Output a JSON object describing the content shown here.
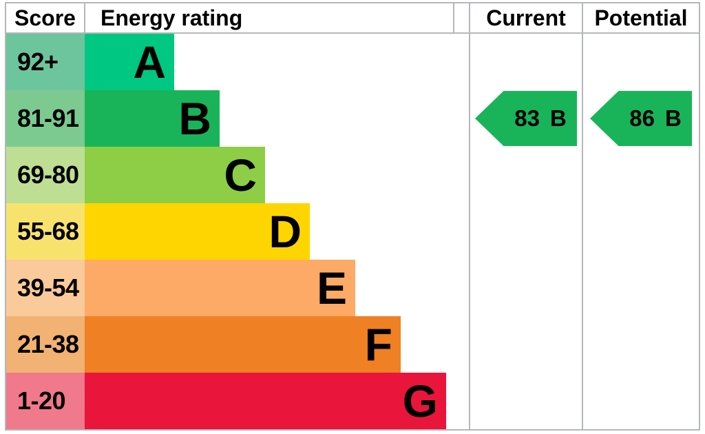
{
  "header": {
    "score": "Score",
    "energy_rating": "Energy rating",
    "current": "Current",
    "potential": "Potential"
  },
  "bands": [
    {
      "letter": "A",
      "score_range": "92+",
      "bar_color": "#00c781",
      "score_bg": "#6cc59d"
    },
    {
      "letter": "B",
      "score_range": "81-91",
      "bar_color": "#19b459",
      "score_bg": "#7cca8f"
    },
    {
      "letter": "C",
      "score_range": "69-80",
      "bar_color": "#8dce46",
      "score_bg": "#bede93"
    },
    {
      "letter": "D",
      "score_range": "55-68",
      "bar_color": "#ffd500",
      "score_bg": "#f8e26e"
    },
    {
      "letter": "E",
      "score_range": "39-54",
      "bar_color": "#fcaa65",
      "score_bg": "#fbca9a"
    },
    {
      "letter": "F",
      "score_range": "21-38",
      "bar_color": "#ef8023",
      "score_bg": "#f2b273"
    },
    {
      "letter": "G",
      "score_range": "1-20",
      "bar_color": "#e9153b",
      "score_bg": "#f0798b"
    }
  ],
  "current": {
    "value": "83",
    "band": "B",
    "arrow_color": "#19b459"
  },
  "potential": {
    "value": "86",
    "band": "B",
    "arrow_color": "#19b459"
  },
  "chart_data": {
    "type": "table",
    "title": "Energy rating",
    "columns": [
      "Score",
      "Energy rating",
      "Current",
      "Potential"
    ],
    "bands": [
      {
        "band": "A",
        "score_range": "92+"
      },
      {
        "band": "B",
        "score_range": "81-91"
      },
      {
        "band": "C",
        "score_range": "69-80"
      },
      {
        "band": "D",
        "score_range": "55-68"
      },
      {
        "band": "E",
        "score_range": "39-54"
      },
      {
        "band": "F",
        "score_range": "21-38"
      },
      {
        "band": "G",
        "score_range": "1-20"
      }
    ],
    "current": {
      "score": 83,
      "band": "B"
    },
    "potential": {
      "score": 86,
      "band": "B"
    }
  }
}
